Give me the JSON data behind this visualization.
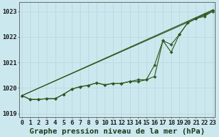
{
  "title": "Graphe pression niveau de la mer (hPa)",
  "background_color": "#cbe8ef",
  "grid_color": "#c0d8df",
  "line_color": "#2d5a1e",
  "x_labels": [
    "0",
    "1",
    "2",
    "3",
    "4",
    "5",
    "6",
    "7",
    "8",
    "9",
    "10",
    "11",
    "12",
    "13",
    "14",
    "15",
    "16",
    "17",
    "18",
    "19",
    "20",
    "21",
    "22",
    "23"
  ],
  "hours": [
    0,
    1,
    2,
    3,
    4,
    5,
    6,
    7,
    8,
    9,
    10,
    11,
    12,
    13,
    14,
    15,
    16,
    17,
    18,
    19,
    20,
    21,
    22,
    23
  ],
  "line1": [
    1019.7,
    1019.55,
    1019.55,
    1019.58,
    1019.58,
    1019.75,
    1019.95,
    1020.05,
    1020.1,
    1020.2,
    1020.12,
    1020.18,
    1020.18,
    1020.25,
    1020.25,
    1020.32,
    1020.45,
    1021.85,
    1021.4,
    1022.1,
    1022.55,
    1022.72,
    1022.8,
    1023.0
  ],
  "line2": [
    1019.7,
    1019.55,
    1019.55,
    1019.58,
    1019.58,
    1019.75,
    1019.95,
    1020.05,
    1020.1,
    1020.2,
    1020.12,
    1020.18,
    1020.18,
    1020.25,
    1020.32,
    1020.32,
    1020.9,
    1021.85,
    1021.7,
    1022.1,
    1022.55,
    1022.72,
    1022.88,
    1023.05
  ],
  "ylim": [
    1018.85,
    1023.35
  ],
  "yticks": [
    1019,
    1020,
    1021,
    1022,
    1023
  ],
  "xlim": [
    -0.3,
    23.3
  ],
  "title_fontsize": 8,
  "tick_fontsize": 6.5
}
